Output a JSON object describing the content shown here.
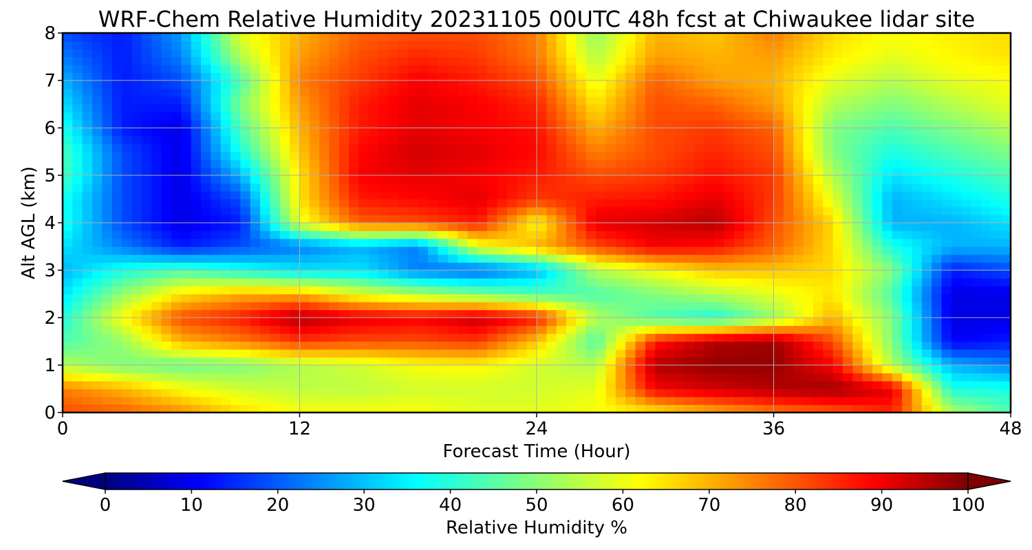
{
  "chart_data": {
    "type": "heatmap",
    "title": "WRF-Chem Relative Humidity 20231105 00UTC 48h fcst at Chiwaukee lidar site",
    "xlabel": "Forecast Time (Hour)",
    "ylabel": "Alt AGL (km)",
    "xlim": [
      0,
      48
    ],
    "ylim": [
      0,
      8
    ],
    "x_ticks": [
      0,
      12,
      24,
      36,
      48
    ],
    "y_ticks": [
      0,
      1,
      2,
      3,
      4,
      5,
      6,
      7,
      8
    ],
    "grid": true,
    "x": [
      0,
      3,
      6,
      9,
      12,
      15,
      18,
      21,
      24,
      27,
      30,
      33,
      36,
      39,
      42,
      45,
      48
    ],
    "y": [
      0,
      0.5,
      1,
      1.5,
      2,
      2.5,
      3,
      3.5,
      4,
      4.5,
      5,
      5.5,
      6,
      6.5,
      7,
      7.5,
      8
    ],
    "z": [
      [
        80,
        78,
        74,
        66,
        62,
        62,
        62,
        60,
        60,
        62,
        64,
        70,
        75,
        78,
        84,
        55,
        45
      ],
      [
        75,
        70,
        62,
        58,
        56,
        56,
        58,
        58,
        58,
        60,
        88,
        92,
        95,
        97,
        90,
        40,
        40
      ],
      [
        55,
        50,
        48,
        50,
        55,
        58,
        62,
        63,
        58,
        55,
        95,
        98,
        98,
        88,
        55,
        30,
        25
      ],
      [
        45,
        52,
        70,
        75,
        82,
        80,
        80,
        82,
        68,
        45,
        85,
        95,
        97,
        80,
        50,
        12,
        15
      ],
      [
        40,
        62,
        80,
        85,
        95,
        90,
        88,
        93,
        85,
        55,
        45,
        40,
        52,
        70,
        50,
        10,
        10
      ],
      [
        35,
        52,
        65,
        70,
        70,
        60,
        55,
        50,
        45,
        45,
        50,
        55,
        60,
        65,
        45,
        10,
        10
      ],
      [
        30,
        40,
        45,
        40,
        35,
        35,
        25,
        22,
        30,
        55,
        62,
        68,
        68,
        66,
        50,
        15,
        20
      ],
      [
        35,
        25,
        15,
        20,
        25,
        30,
        25,
        60,
        70,
        80,
        88,
        86,
        78,
        66,
        40,
        30,
        30
      ],
      [
        40,
        20,
        10,
        15,
        60,
        78,
        80,
        85,
        62,
        90,
        92,
        95,
        80,
        66,
        30,
        30,
        35
      ],
      [
        40,
        20,
        10,
        20,
        65,
        85,
        87,
        90,
        82,
        85,
        86,
        90,
        82,
        60,
        30,
        35,
        40
      ],
      [
        45,
        20,
        10,
        30,
        65,
        88,
        90,
        88,
        85,
        80,
        82,
        86,
        82,
        55,
        35,
        40,
        45
      ],
      [
        45,
        20,
        10,
        40,
        68,
        87,
        92,
        90,
        87,
        75,
        80,
        84,
        80,
        50,
        40,
        45,
        50
      ],
      [
        40,
        15,
        10,
        45,
        70,
        85,
        90,
        88,
        86,
        70,
        80,
        82,
        78,
        50,
        45,
        50,
        55
      ],
      [
        35,
        15,
        15,
        50,
        72,
        85,
        90,
        88,
        84,
        65,
        80,
        78,
        72,
        55,
        50,
        55,
        60
      ],
      [
        30,
        15,
        20,
        45,
        75,
        82,
        88,
        85,
        80,
        60,
        78,
        72,
        70,
        60,
        55,
        60,
        62
      ],
      [
        25,
        15,
        25,
        55,
        72,
        80,
        84,
        82,
        76,
        55,
        72,
        70,
        72,
        64,
        60,
        63,
        65
      ],
      [
        20,
        15,
        28,
        60,
        70,
        78,
        80,
        80,
        75,
        52,
        70,
        68,
        75,
        66,
        62,
        64,
        66
      ]
    ],
    "colorbar": {
      "label": "Relative Humidity %",
      "range": [
        0,
        100
      ],
      "ticks": [
        0,
        10,
        20,
        30,
        40,
        50,
        60,
        70,
        80,
        90,
        100
      ],
      "extend": "both",
      "colormap": "jet"
    }
  }
}
